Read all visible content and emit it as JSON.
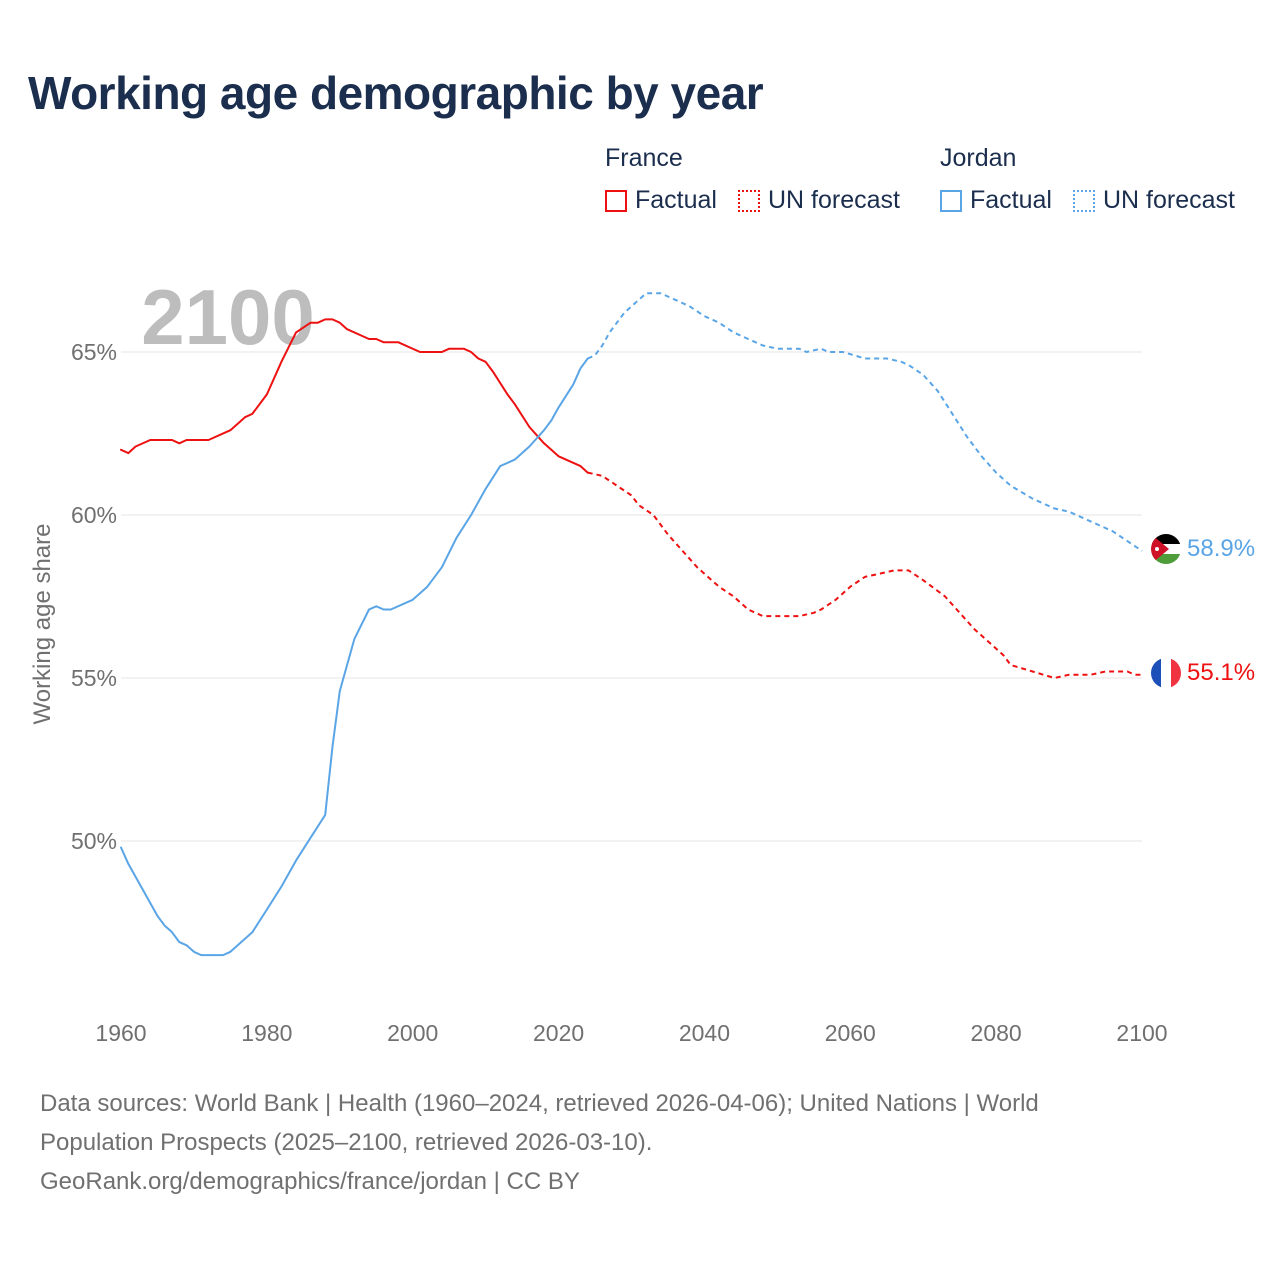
{
  "title": "Working age demographic by year",
  "legend": {
    "france": {
      "title": "France",
      "factual": "Factual",
      "forecast": "UN forecast",
      "color": "#ee1111"
    },
    "jordan": {
      "title": "Jordan",
      "factual": "Factual",
      "forecast": "UN forecast",
      "color": "#5aa5e6"
    }
  },
  "chart_data": {
    "type": "line",
    "year_watermark": "2100",
    "ylabel": "Working age share",
    "xlabel": "",
    "xlim": [
      1960,
      2100
    ],
    "ylim": [
      45,
      69
    ],
    "x_ticks": [
      "1960",
      "1980",
      "2000",
      "2020",
      "2040",
      "2060",
      "2080",
      "2100"
    ],
    "y_ticks": [
      {
        "value": 50,
        "label": "50%"
      },
      {
        "value": 55,
        "label": "55%"
      },
      {
        "value": 60,
        "label": "60%"
      },
      {
        "value": 65,
        "label": "65%"
      }
    ],
    "factual_end_year": 2024,
    "series": [
      {
        "name": "France",
        "color": "#ee1111",
        "end_label": "55.1%",
        "points": [
          [
            1960,
            62.0
          ],
          [
            1961,
            61.9
          ],
          [
            1962,
            62.1
          ],
          [
            1964,
            62.3
          ],
          [
            1967,
            62.3
          ],
          [
            1968,
            62.2
          ],
          [
            1969,
            62.3
          ],
          [
            1972,
            62.3
          ],
          [
            1975,
            62.6
          ],
          [
            1977,
            63.0
          ],
          [
            1978,
            63.1
          ],
          [
            1980,
            63.7
          ],
          [
            1982,
            64.7
          ],
          [
            1984,
            65.6
          ],
          [
            1986,
            65.9
          ],
          [
            1987,
            65.9
          ],
          [
            1988,
            66.0
          ],
          [
            1989,
            66.0
          ],
          [
            1990,
            65.9
          ],
          [
            1991,
            65.7
          ],
          [
            1994,
            65.4
          ],
          [
            1995,
            65.4
          ],
          [
            1996,
            65.3
          ],
          [
            1998,
            65.3
          ],
          [
            2001,
            65.0
          ],
          [
            2004,
            65.0
          ],
          [
            2005,
            65.1
          ],
          [
            2007,
            65.1
          ],
          [
            2008,
            65.0
          ],
          [
            2009,
            64.8
          ],
          [
            2010,
            64.7
          ],
          [
            2011,
            64.4
          ],
          [
            2013,
            63.7
          ],
          [
            2014,
            63.4
          ],
          [
            2016,
            62.7
          ],
          [
            2018,
            62.2
          ],
          [
            2020,
            61.8
          ],
          [
            2023,
            61.5
          ],
          [
            2024,
            61.3
          ],
          [
            2026,
            61.2
          ],
          [
            2028,
            60.9
          ],
          [
            2030,
            60.6
          ],
          [
            2031,
            60.3
          ],
          [
            2033,
            60.0
          ],
          [
            2035,
            59.4
          ],
          [
            2037,
            58.9
          ],
          [
            2039,
            58.4
          ],
          [
            2042,
            57.8
          ],
          [
            2044,
            57.5
          ],
          [
            2046,
            57.1
          ],
          [
            2048,
            56.9
          ],
          [
            2053,
            56.9
          ],
          [
            2055,
            57.0
          ],
          [
            2056,
            57.1
          ],
          [
            2058,
            57.4
          ],
          [
            2060,
            57.8
          ],
          [
            2062,
            58.1
          ],
          [
            2064,
            58.2
          ],
          [
            2066,
            58.3
          ],
          [
            2068,
            58.3
          ],
          [
            2070,
            58.0
          ],
          [
            2073,
            57.5
          ],
          [
            2075,
            57.0
          ],
          [
            2077,
            56.5
          ],
          [
            2079,
            56.1
          ],
          [
            2081,
            55.7
          ],
          [
            2082,
            55.4
          ],
          [
            2085,
            55.2
          ],
          [
            2088,
            55.0
          ],
          [
            2090,
            55.1
          ],
          [
            2093,
            55.1
          ],
          [
            2095,
            55.2
          ],
          [
            2098,
            55.2
          ],
          [
            2099,
            55.1
          ],
          [
            2100,
            55.1
          ]
        ]
      },
      {
        "name": "Jordan",
        "color": "#5aa5e6",
        "end_label": "58.9%",
        "points": [
          [
            1960,
            49.8
          ],
          [
            1961,
            49.3
          ],
          [
            1963,
            48.5
          ],
          [
            1965,
            47.7
          ],
          [
            1966,
            47.4
          ],
          [
            1967,
            47.2
          ],
          [
            1968,
            46.9
          ],
          [
            1969,
            46.8
          ],
          [
            1970,
            46.6
          ],
          [
            1971,
            46.5
          ],
          [
            1974,
            46.5
          ],
          [
            1975,
            46.6
          ],
          [
            1978,
            47.2
          ],
          [
            1980,
            47.9
          ],
          [
            1982,
            48.6
          ],
          [
            1984,
            49.4
          ],
          [
            1986,
            50.1
          ],
          [
            1988,
            50.8
          ],
          [
            1989,
            52.9
          ],
          [
            1990,
            54.6
          ],
          [
            1992,
            56.2
          ],
          [
            1994,
            57.1
          ],
          [
            1995,
            57.2
          ],
          [
            1996,
            57.1
          ],
          [
            1997,
            57.1
          ],
          [
            2000,
            57.4
          ],
          [
            2002,
            57.8
          ],
          [
            2004,
            58.4
          ],
          [
            2006,
            59.3
          ],
          [
            2008,
            60.0
          ],
          [
            2010,
            60.8
          ],
          [
            2012,
            61.5
          ],
          [
            2014,
            61.7
          ],
          [
            2016,
            62.1
          ],
          [
            2018,
            62.6
          ],
          [
            2019,
            62.9
          ],
          [
            2020,
            63.3
          ],
          [
            2022,
            64.0
          ],
          [
            2023,
            64.5
          ],
          [
            2024,
            64.8
          ],
          [
            2025,
            64.9
          ],
          [
            2026,
            65.2
          ],
          [
            2027,
            65.6
          ],
          [
            2029,
            66.2
          ],
          [
            2031,
            66.6
          ],
          [
            2032,
            66.8
          ],
          [
            2033,
            66.8
          ],
          [
            2034,
            66.8
          ],
          [
            2036,
            66.6
          ],
          [
            2038,
            66.4
          ],
          [
            2040,
            66.1
          ],
          [
            2042,
            65.9
          ],
          [
            2044,
            65.6
          ],
          [
            2046,
            65.4
          ],
          [
            2048,
            65.2
          ],
          [
            2050,
            65.1
          ],
          [
            2053,
            65.1
          ],
          [
            2054,
            65.0
          ],
          [
            2056,
            65.1
          ],
          [
            2057,
            65.0
          ],
          [
            2059,
            65.0
          ],
          [
            2062,
            64.8
          ],
          [
            2065,
            64.8
          ],
          [
            2067,
            64.7
          ],
          [
            2068,
            64.6
          ],
          [
            2070,
            64.3
          ],
          [
            2072,
            63.8
          ],
          [
            2074,
            63.1
          ],
          [
            2076,
            62.4
          ],
          [
            2078,
            61.8
          ],
          [
            2080,
            61.3
          ],
          [
            2082,
            60.9
          ],
          [
            2085,
            60.5
          ],
          [
            2088,
            60.2
          ],
          [
            2090,
            60.1
          ],
          [
            2092,
            59.9
          ],
          [
            2096,
            59.5
          ],
          [
            2098,
            59.2
          ],
          [
            2100,
            58.9
          ]
        ]
      }
    ]
  },
  "footer": {
    "line1": "Data sources: World Bank | Health (1960–2024, retrieved 2026-04-06); United Nations | World",
    "line2": "Population Prospects (2025–2100, retrieved 2026-03-10).",
    "line3": "GeoRank.org/demographics/france/jordan | CC BY"
  }
}
